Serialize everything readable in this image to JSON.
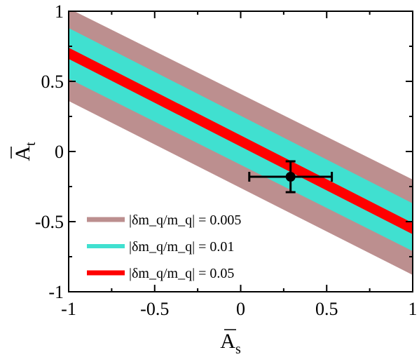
{
  "chart_data": {
    "type": "area",
    "title": "",
    "xlabel": "A_s",
    "ylabel": "A_t",
    "xlim": [
      -1,
      1
    ],
    "ylim": [
      -1,
      1
    ],
    "x_ticks": [
      {
        "value": -1,
        "label": "-1"
      },
      {
        "value": -0.5,
        "label": "-0.5"
      },
      {
        "value": 0,
        "label": "0"
      },
      {
        "value": 0.5,
        "label": "0.5"
      },
      {
        "value": 1,
        "label": "1"
      }
    ],
    "y_ticks": [
      {
        "value": -1,
        "label": "-1"
      },
      {
        "value": -0.5,
        "label": "-0.5"
      },
      {
        "value": 0,
        "label": "0"
      },
      {
        "value": 0.5,
        "label": "0.5"
      },
      {
        "value": 1,
        "label": "1"
      }
    ],
    "grid": false,
    "legend_position": "bottom-left",
    "series": [
      {
        "name": "|δm_q/m_q| = 0.005",
        "color": "#bc8f8f",
        "upper": [
          {
            "x": -1,
            "y": 1.02
          },
          {
            "x": 1,
            "y": -0.2
          }
        ],
        "lower": [
          {
            "x": -1,
            "y": 0.36
          },
          {
            "x": 1,
            "y": -0.88
          }
        ]
      },
      {
        "name": "|δm_q/m_q| = 0.01",
        "color": "#40e0d0",
        "upper": [
          {
            "x": -1,
            "y": 0.88
          },
          {
            "x": 1,
            "y": -0.37
          }
        ],
        "lower": [
          {
            "x": -1,
            "y": 0.52
          },
          {
            "x": 1,
            "y": -0.71
          }
        ]
      },
      {
        "name": "|δm_q/m_q| = 0.05",
        "color": "#ff0000",
        "upper": [
          {
            "x": -1,
            "y": 0.74
          },
          {
            "x": 1,
            "y": -0.51
          }
        ],
        "lower": [
          {
            "x": -1,
            "y": 0.66
          },
          {
            "x": 1,
            "y": -0.59
          }
        ]
      }
    ],
    "data_point": {
      "x": 0.29,
      "y": -0.18,
      "x_err": [
        0.24,
        0.24
      ],
      "y_err": [
        0.11,
        0.11
      ],
      "color": "#000000"
    }
  }
}
